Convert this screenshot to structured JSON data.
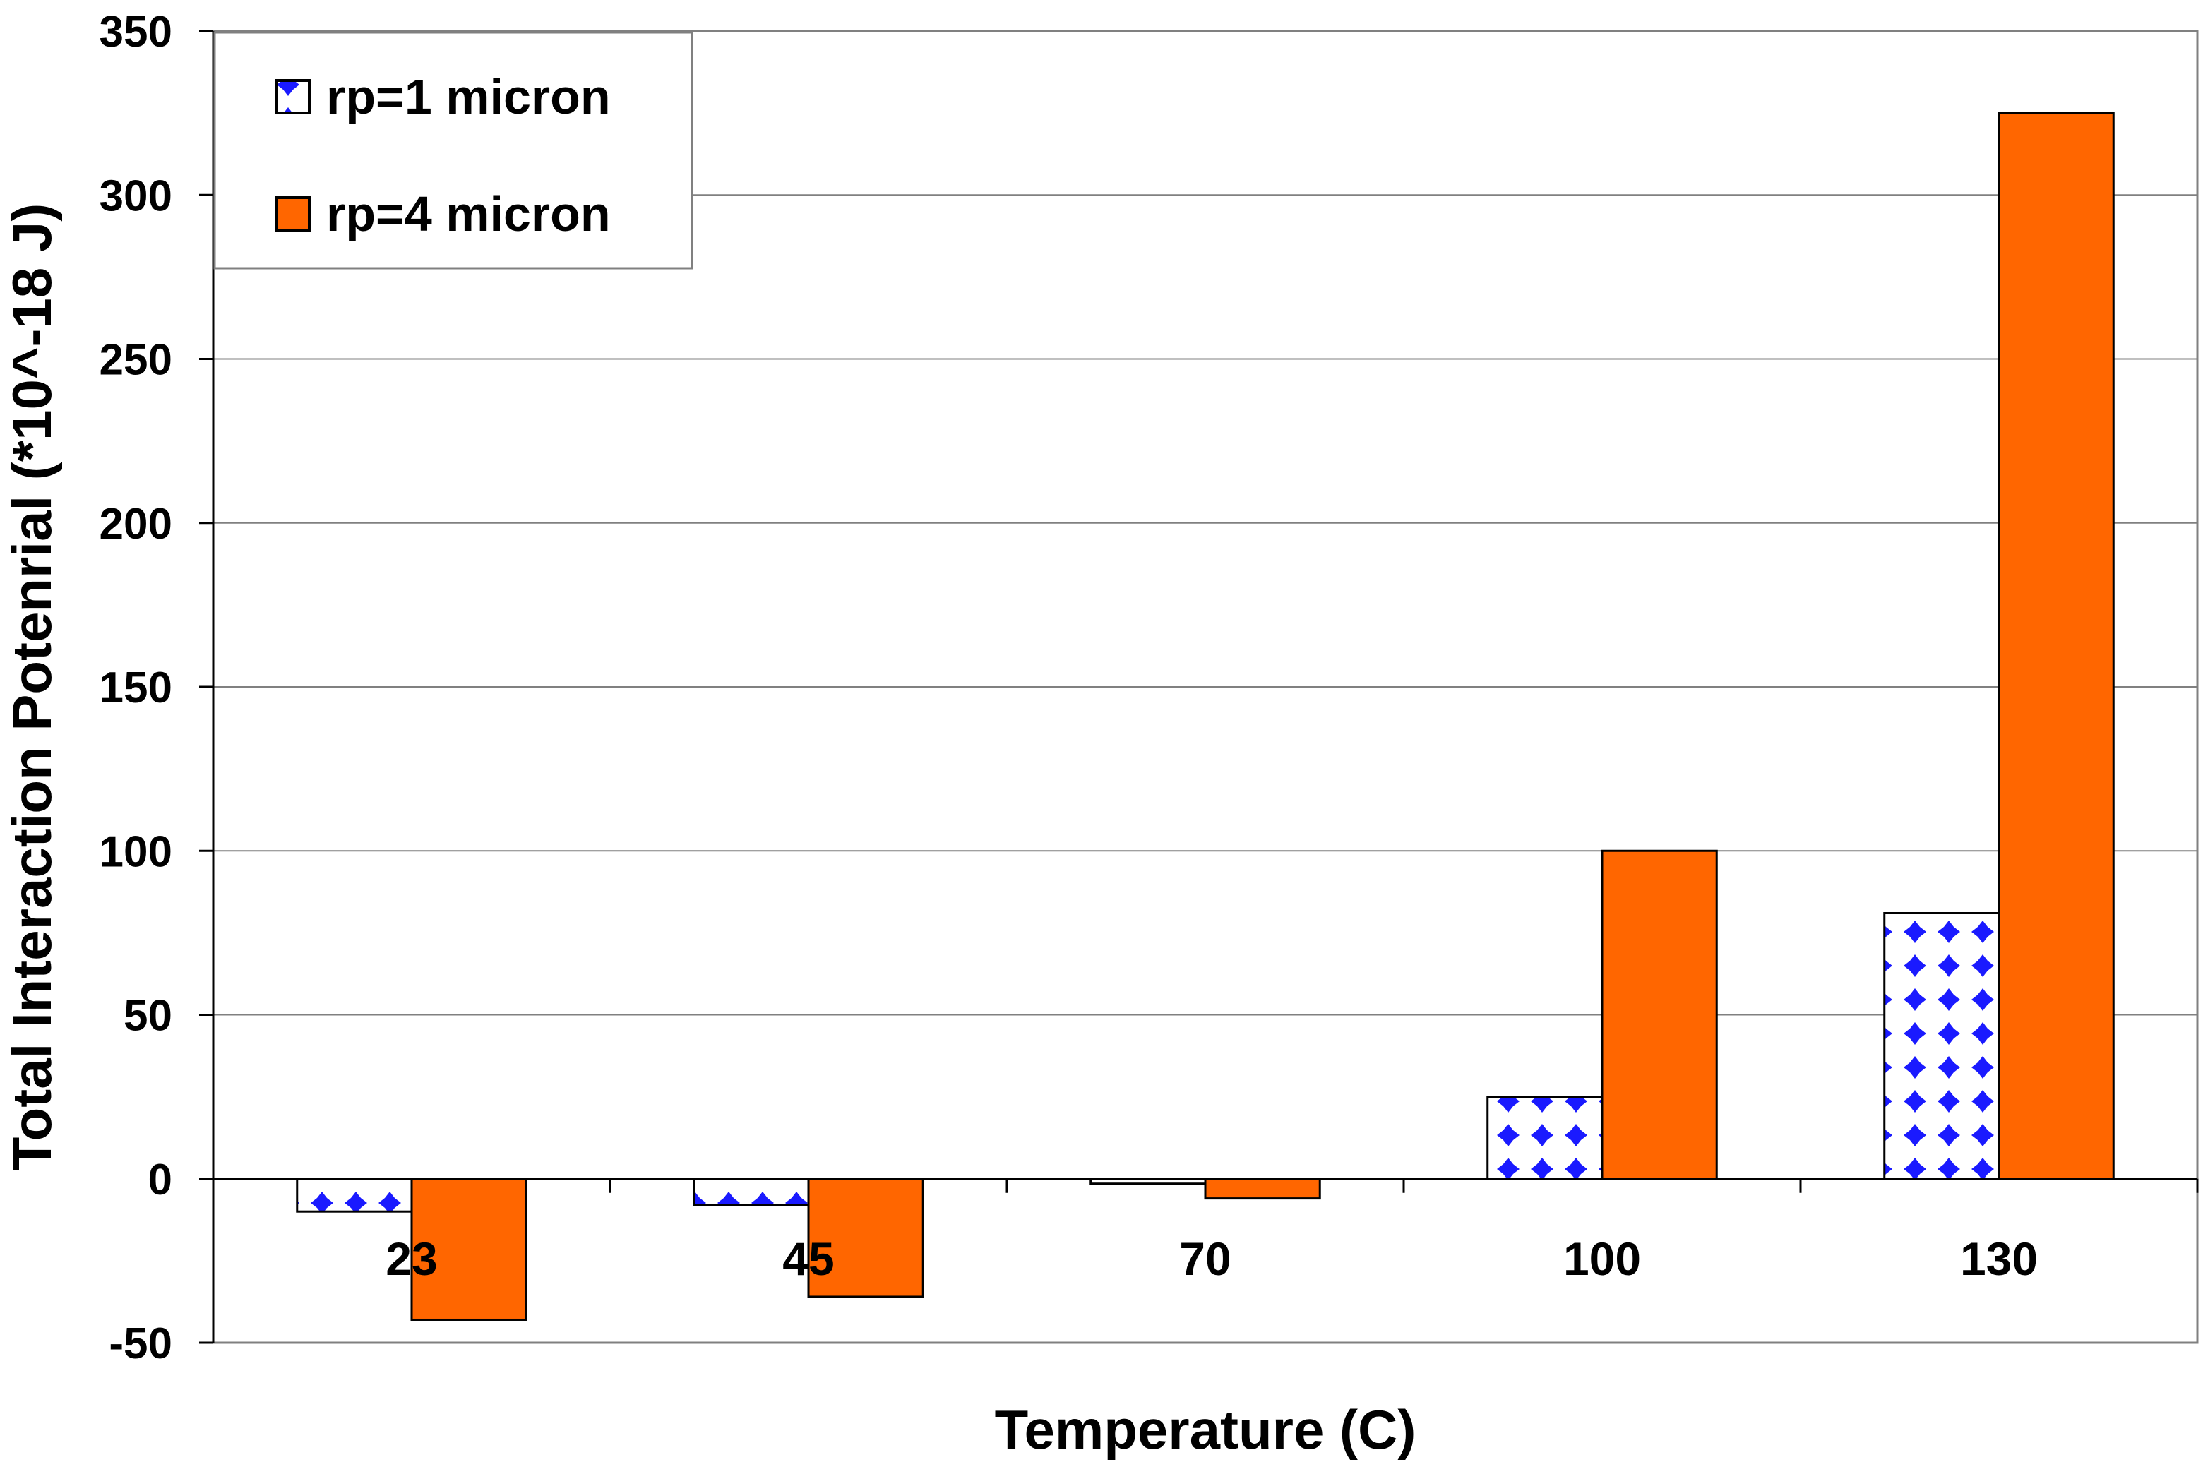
{
  "chart_data": {
    "type": "bar",
    "title": "",
    "xlabel": "Temperature (C)",
    "ylabel": "Total Interaction Potenrial (*10^-18 J)",
    "categories": [
      "23",
      "45",
      "70",
      "100",
      "130"
    ],
    "ylim": [
      -50,
      350
    ],
    "yticks": [
      -50,
      0,
      50,
      100,
      150,
      200,
      250,
      300,
      350
    ],
    "grid": true,
    "legend_position": "top-left",
    "series": [
      {
        "name": "rp=1 micron",
        "values": [
          -10,
          -8,
          -1.5,
          25,
          81
        ],
        "color": "#1a1aff",
        "pattern": "diamond-dots"
      },
      {
        "name": "rp=4 micron",
        "values": [
          -43,
          -36,
          -6,
          100,
          325
        ],
        "color": "#ff6600",
        "pattern": "solid"
      }
    ]
  }
}
